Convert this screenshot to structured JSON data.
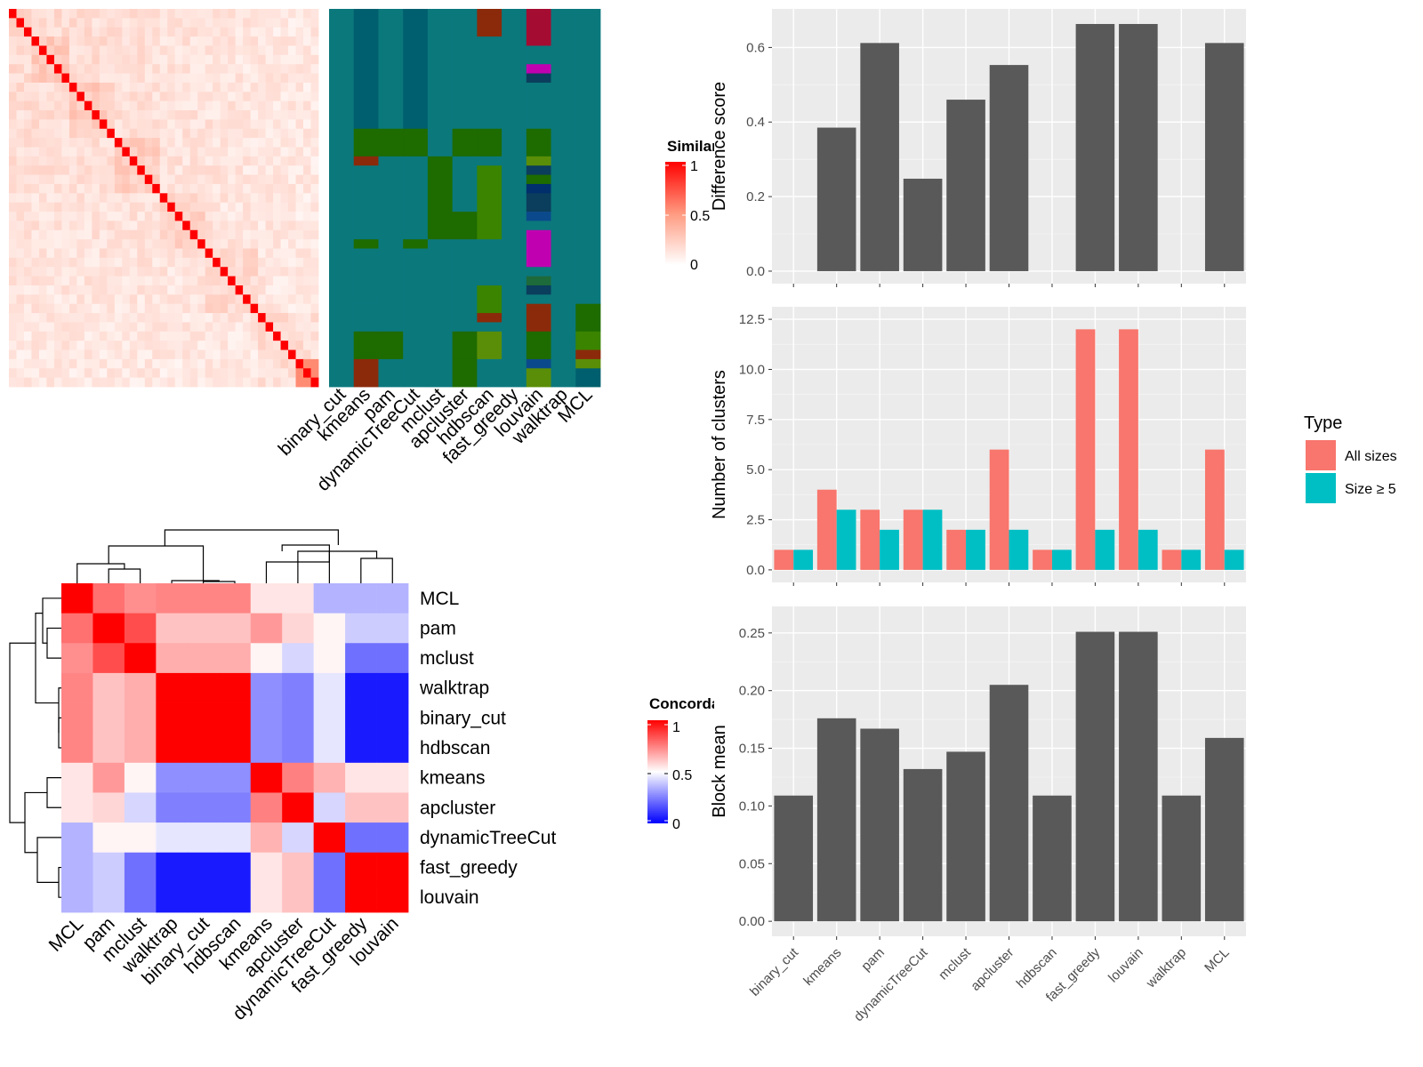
{
  "colors": {
    "panel_bg": "#ebebeb",
    "bar_dark": "#595959",
    "all_sizes": "#f8766d",
    "size5": "#00bfc4",
    "sim_high": "#ff0000",
    "sim_low": "#ffffff",
    "conc_high": "#ff0000",
    "conc_mid": "#ffffff",
    "conc_low": "#0000ff",
    "class_base": "#0b787c",
    "class_palette": [
      "#0b787c",
      "#005f6e",
      "#1e6b00",
      "#3a8400",
      "#5a8e08",
      "#8b2a0a",
      "#a50c32",
      "#c000b0",
      "#0b3d5c",
      "#002f6c",
      "#0a4a8c",
      "#1d6a3a"
    ]
  },
  "similarity_heatmap": {
    "legend_title": "Similarity",
    "legend_ticks": [
      "1",
      "0.5",
      "0"
    ],
    "n": 41,
    "blocks": [
      3,
      5,
      6,
      6,
      6,
      7,
      8
    ],
    "method_labels": [
      "binary_cut",
      "kmeans",
      "pam",
      "dynamicTreeCut",
      "mclust",
      "apcluster",
      "hdbscan",
      "fast_greedy",
      "louvain",
      "walktrap",
      "MCL"
    ],
    "class_segments": [
      [
        [
          0,
          41,
          0
        ]
      ],
      [
        [
          0,
          13,
          1
        ],
        [
          13,
          16,
          2
        ],
        [
          16,
          17,
          5
        ],
        [
          17,
          22,
          0
        ],
        [
          22,
          25,
          0
        ],
        [
          25,
          26,
          2
        ],
        [
          26,
          32,
          0
        ],
        [
          32,
          35,
          0
        ],
        [
          35,
          38,
          2
        ],
        [
          38,
          41,
          5
        ]
      ],
      [
        [
          0,
          13,
          0
        ],
        [
          13,
          16,
          2
        ],
        [
          16,
          35,
          0
        ],
        [
          35,
          38,
          2
        ],
        [
          38,
          41,
          0
        ]
      ],
      [
        [
          0,
          13,
          1
        ],
        [
          13,
          16,
          2
        ],
        [
          16,
          25,
          0
        ],
        [
          25,
          26,
          2
        ],
        [
          26,
          41,
          0
        ]
      ],
      [
        [
          0,
          16,
          0
        ],
        [
          16,
          25,
          2
        ],
        [
          25,
          41,
          0
        ]
      ],
      [
        [
          0,
          13,
          0
        ],
        [
          13,
          16,
          2
        ],
        [
          16,
          22,
          0
        ],
        [
          22,
          25,
          2
        ],
        [
          25,
          35,
          0
        ],
        [
          35,
          38,
          2
        ],
        [
          38,
          41,
          2
        ]
      ],
      [
        [
          0,
          3,
          5
        ],
        [
          3,
          13,
          0
        ],
        [
          13,
          16,
          2
        ],
        [
          16,
          17,
          0
        ],
        [
          17,
          21,
          3
        ],
        [
          21,
          25,
          3
        ],
        [
          25,
          30,
          0
        ],
        [
          30,
          33,
          3
        ],
        [
          33,
          34,
          5
        ],
        [
          34,
          35,
          0
        ],
        [
          35,
          38,
          4
        ],
        [
          38,
          41,
          0
        ]
      ],
      [
        [
          0,
          41,
          0
        ]
      ],
      [
        [
          0,
          4,
          6
        ],
        [
          4,
          6,
          0
        ],
        [
          6,
          7,
          7
        ],
        [
          7,
          8,
          8
        ],
        [
          8,
          13,
          0
        ],
        [
          13,
          16,
          2
        ],
        [
          16,
          17,
          4
        ],
        [
          17,
          18,
          8
        ],
        [
          18,
          19,
          2
        ],
        [
          19,
          20,
          9
        ],
        [
          20,
          22,
          8
        ],
        [
          22,
          23,
          10
        ],
        [
          23,
          24,
          0
        ],
        [
          24,
          28,
          7
        ],
        [
          28,
          29,
          0
        ],
        [
          29,
          30,
          11
        ],
        [
          30,
          31,
          8
        ],
        [
          31,
          32,
          0
        ],
        [
          32,
          35,
          5
        ],
        [
          35,
          38,
          2
        ],
        [
          38,
          39,
          10
        ],
        [
          39,
          41,
          4
        ]
      ],
      [
        [
          0,
          41,
          0
        ]
      ],
      [
        [
          0,
          32,
          0
        ],
        [
          32,
          35,
          2
        ],
        [
          35,
          36,
          3
        ],
        [
          36,
          37,
          3
        ],
        [
          37,
          38,
          5
        ],
        [
          38,
          39,
          4
        ],
        [
          39,
          41,
          1
        ]
      ]
    ]
  },
  "concordance_heatmap": {
    "legend_title": "Concordance",
    "legend_ticks": [
      "1",
      "0.5",
      "0"
    ],
    "labels": [
      "MCL",
      "pam",
      "mclust",
      "walktrap",
      "binary_cut",
      "hdbscan",
      "kmeans",
      "apcluster",
      "dynamicTreeCut",
      "fast_greedy",
      "louvain"
    ],
    "matrix": [
      [
        1.0,
        0.78,
        0.72,
        0.74,
        0.74,
        0.74,
        0.55,
        0.55,
        0.35,
        0.35,
        0.35
      ],
      [
        0.78,
        1.0,
        0.85,
        0.62,
        0.62,
        0.62,
        0.7,
        0.58,
        0.52,
        0.4,
        0.4
      ],
      [
        0.72,
        0.85,
        1.0,
        0.66,
        0.66,
        0.66,
        0.52,
        0.42,
        0.52,
        0.22,
        0.22
      ],
      [
        0.74,
        0.62,
        0.66,
        1.0,
        1.0,
        1.0,
        0.28,
        0.25,
        0.45,
        0.05,
        0.05
      ],
      [
        0.74,
        0.62,
        0.66,
        1.0,
        1.0,
        1.0,
        0.28,
        0.25,
        0.45,
        0.05,
        0.05
      ],
      [
        0.74,
        0.62,
        0.66,
        1.0,
        1.0,
        1.0,
        0.28,
        0.25,
        0.45,
        0.05,
        0.05
      ],
      [
        0.55,
        0.7,
        0.52,
        0.28,
        0.28,
        0.28,
        1.0,
        0.75,
        0.65,
        0.55,
        0.55
      ],
      [
        0.55,
        0.58,
        0.42,
        0.25,
        0.25,
        0.25,
        0.75,
        1.0,
        0.42,
        0.62,
        0.62
      ],
      [
        0.35,
        0.52,
        0.52,
        0.45,
        0.45,
        0.45,
        0.65,
        0.42,
        1.0,
        0.22,
        0.22
      ],
      [
        0.35,
        0.4,
        0.22,
        0.05,
        0.05,
        0.05,
        0.55,
        0.62,
        0.22,
        1.0,
        1.0
      ],
      [
        0.35,
        0.4,
        0.22,
        0.05,
        0.05,
        0.05,
        0.55,
        0.62,
        0.22,
        1.0,
        1.0
      ]
    ]
  },
  "chart_data": [
    {
      "type": "bar",
      "ylabel": "Difference score",
      "xlabel": "",
      "categories": [
        "binary_cut",
        "kmeans",
        "pam",
        "dynamicTreeCut",
        "mclust",
        "apcluster",
        "hdbscan",
        "fast_greedy",
        "louvain",
        "walktrap",
        "MCL"
      ],
      "values": [
        0,
        0.385,
        0.612,
        0.248,
        0.46,
        0.553,
        0,
        0.663,
        0.663,
        0,
        0.612
      ],
      "ylim": [
        0,
        0.67
      ],
      "yticks": [
        "0.0",
        "0.2",
        "0.4",
        "0.6"
      ],
      "ytick_values": [
        0,
        0.2,
        0.4,
        0.6
      ],
      "grid": true
    },
    {
      "type": "bar",
      "ylabel": "Number of clusters",
      "xlabel": "",
      "categories": [
        "binary_cut",
        "kmeans",
        "pam",
        "dynamicTreeCut",
        "mclust",
        "apcluster",
        "hdbscan",
        "fast_greedy",
        "louvain",
        "walktrap",
        "MCL"
      ],
      "series": [
        {
          "name": "All sizes",
          "values": [
            1,
            4,
            3,
            3,
            2,
            6,
            1,
            12,
            12,
            1,
            6
          ]
        },
        {
          "name": "Size ≥ 5",
          "values": [
            1,
            3,
            2,
            3,
            2,
            2,
            1,
            2,
            2,
            1,
            1
          ]
        }
      ],
      "ylim": [
        0,
        12.5
      ],
      "yticks": [
        "0.0",
        "2.5",
        "5.0",
        "7.5",
        "10.0",
        "12.5"
      ],
      "ytick_values": [
        0,
        2.5,
        5,
        7.5,
        10,
        12.5
      ],
      "legend_title": "Type",
      "legend_position": "right",
      "grid": true
    },
    {
      "type": "bar",
      "ylabel": "Block mean",
      "xlabel": "",
      "categories": [
        "binary_cut",
        "kmeans",
        "pam",
        "dynamicTreeCut",
        "mclust",
        "apcluster",
        "hdbscan",
        "fast_greedy",
        "louvain",
        "walktrap",
        "MCL"
      ],
      "values": [
        0.109,
        0.176,
        0.167,
        0.132,
        0.147,
        0.205,
        0.109,
        0.251,
        0.251,
        0.109,
        0.159
      ],
      "ylim": [
        0,
        0.26
      ],
      "yticks": [
        "0.00",
        "0.05",
        "0.10",
        "0.15",
        "0.20",
        "0.25"
      ],
      "ytick_values": [
        0,
        0.05,
        0.1,
        0.15,
        0.2,
        0.25
      ],
      "grid": true
    }
  ]
}
